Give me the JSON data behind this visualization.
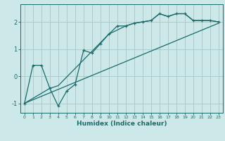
{
  "title": "",
  "xlabel": "Humidex (Indice chaleur)",
  "bg_color": "#cde8e8",
  "grid_color": "#aacccc",
  "line_color": "#1a6b6b",
  "xlim": [
    -0.5,
    23.5
  ],
  "ylim": [
    -1.35,
    2.65
  ],
  "xticks": [
    0,
    1,
    2,
    3,
    4,
    5,
    6,
    7,
    8,
    9,
    10,
    11,
    12,
    13,
    14,
    15,
    16,
    17,
    18,
    19,
    20,
    21,
    22,
    23
  ],
  "yticks": [
    -1,
    0,
    1,
    2
  ],
  "line1_x": [
    0,
    1,
    2,
    3,
    4,
    5,
    6,
    7,
    8,
    9,
    10,
    11,
    12,
    13,
    14,
    15,
    16,
    17,
    18,
    19,
    20,
    21,
    22,
    23
  ],
  "line1_y": [
    -1.0,
    0.4,
    0.4,
    -0.45,
    -1.1,
    -0.55,
    -0.3,
    0.95,
    0.85,
    1.2,
    1.55,
    1.85,
    1.85,
    1.95,
    2.0,
    2.05,
    2.3,
    2.2,
    2.3,
    2.3,
    2.05,
    2.05,
    2.05,
    2.0
  ],
  "line2_x": [
    0,
    3,
    4,
    10,
    12,
    13,
    14,
    15,
    16,
    17,
    18,
    19,
    20,
    21,
    22,
    23
  ],
  "line2_y": [
    -1.0,
    -0.45,
    -0.35,
    1.55,
    1.85,
    1.95,
    2.0,
    2.05,
    2.3,
    2.2,
    2.3,
    2.3,
    2.05,
    2.05,
    2.05,
    2.0
  ],
  "line3_x": [
    0,
    23
  ],
  "line3_y": [
    -1.0,
    1.95
  ]
}
